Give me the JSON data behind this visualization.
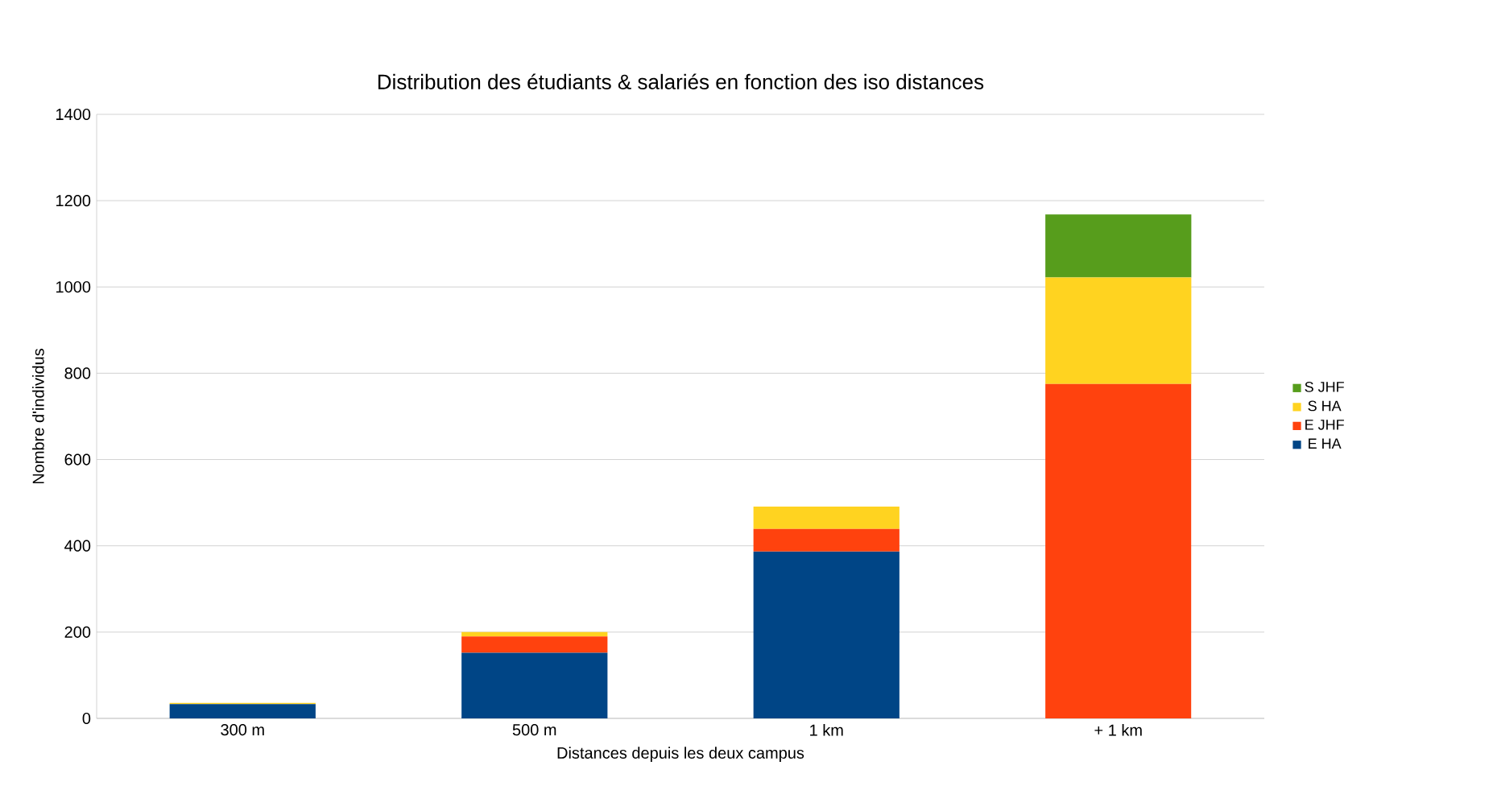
{
  "chart_data": {
    "type": "bar",
    "stacked": true,
    "title": "Distribution des étudiants & salariés en fonction des iso distances",
    "xlabel": "Distances depuis les deux campus",
    "ylabel": "Nombre d'individus",
    "categories": [
      "300 m",
      "500 m",
      "1 km",
      "+ 1 km"
    ],
    "series": [
      {
        "name": "E HA",
        "color": "#004586",
        "values": [
          33,
          152,
          387,
          0
        ]
      },
      {
        "name": "E JHF",
        "color": "#ff420e",
        "values": [
          0,
          38,
          52,
          775
        ]
      },
      {
        "name": "S HA",
        "color": "#ffd320",
        "values": [
          3,
          10,
          52,
          247
        ]
      },
      {
        "name": "S JHF",
        "color": "#579d1c",
        "values": [
          0,
          0,
          0,
          146
        ]
      }
    ],
    "ylim": [
      0,
      1400
    ],
    "yticks": [
      0,
      200,
      400,
      600,
      800,
      1000,
      1200,
      1400
    ],
    "grid": "y",
    "legend": "right"
  }
}
